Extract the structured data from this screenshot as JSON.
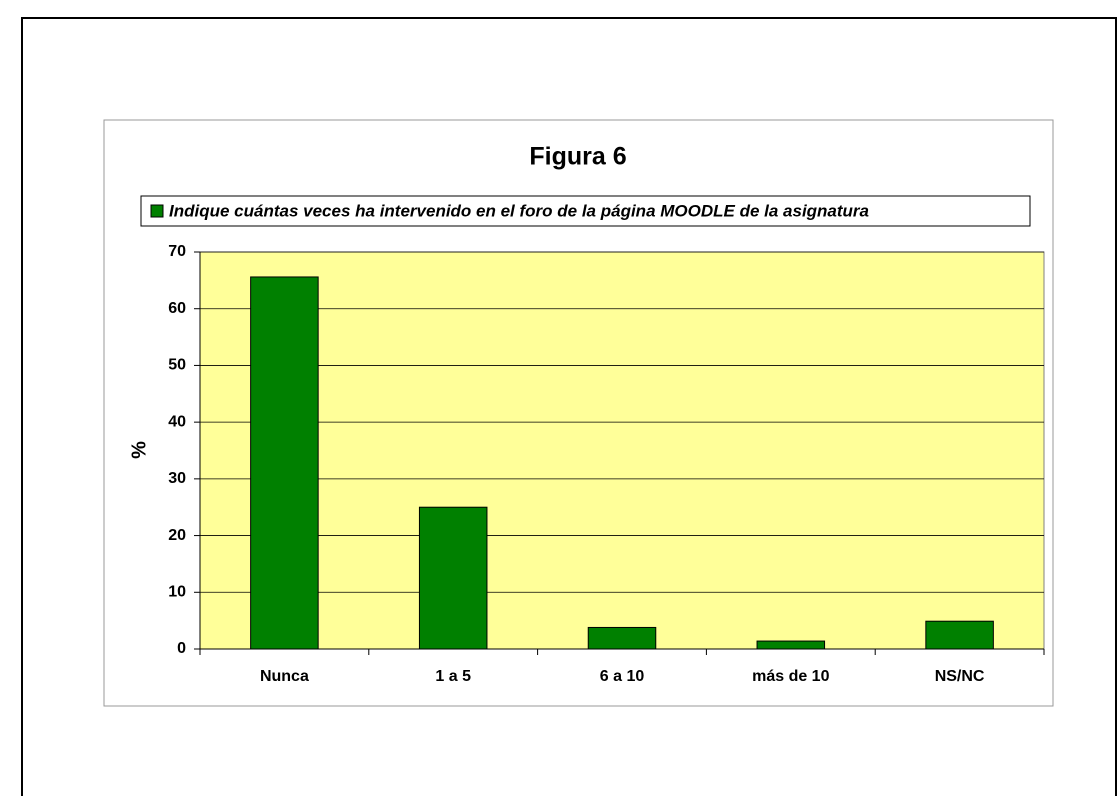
{
  "chart_data": {
    "type": "bar",
    "title": "Figura 6",
    "y_label": "%",
    "categories": [
      "Nunca",
      "1 a 5",
      "6 a 10",
      "más de 10",
      "NS/NC"
    ],
    "series": [
      {
        "name": "Indique cuántas veces ha intervenido en el foro de la página MOODLE de la asignatura",
        "color": "#008000",
        "values": [
          65.6,
          25.0,
          3.8,
          1.4,
          4.9
        ]
      }
    ],
    "ylim": [
      0,
      70
    ],
    "yticks": [
      0,
      10,
      20,
      30,
      40,
      50,
      60,
      70
    ],
    "grid": true,
    "plot_background": "#ffff99"
  }
}
